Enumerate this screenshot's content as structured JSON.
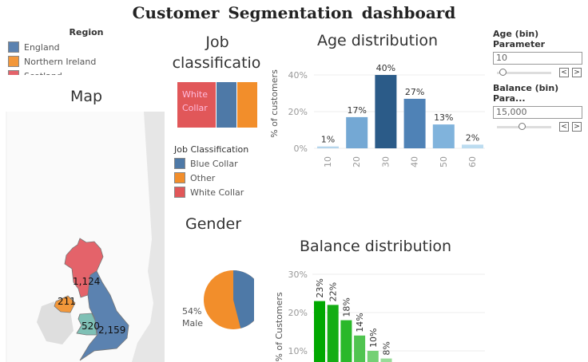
{
  "title": "Customer  Segmentation  dashboard",
  "region_legend": {
    "title": "Region",
    "items": [
      {
        "label": "England",
        "color": "#5b82b0"
      },
      {
        "label": "Northern Ireland",
        "color": "#f2973a"
      },
      {
        "label": "Scotland",
        "color": "#e4636a"
      }
    ]
  },
  "map": {
    "title": "Map",
    "labels": {
      "scotland": "1,124",
      "northern_ireland": "211",
      "wales": "520",
      "england": "2,159"
    },
    "wales_color": "#7fc0b5"
  },
  "job": {
    "title_line1": "Job",
    "title_line2": "classificatio",
    "treemap_label": "White Collar",
    "legend_title": "Job Classification",
    "items": [
      {
        "label": "Blue Collar",
        "color": "#4e79a7"
      },
      {
        "label": "Other",
        "color": "#f28e2b"
      },
      {
        "label": "White Collar",
        "color": "#e15759"
      }
    ]
  },
  "gender": {
    "title": "Gender",
    "pct": "54%",
    "label": "Male"
  },
  "age_param": {
    "title": "Age (bin) Parameter",
    "value": "10",
    "slider_fraction": 0.05
  },
  "balance_param": {
    "title": "Balance (bin) Para...",
    "value": "15,000",
    "slider_fraction": 0.45
  },
  "chart_data": [
    {
      "type": "bar",
      "title": "Age distribution",
      "ylabel": "% of customers",
      "categories": [
        "10",
        "20",
        "30",
        "40",
        "50",
        "60"
      ],
      "values": [
        1,
        17,
        40,
        27,
        13,
        2
      ],
      "data_labels": [
        "1%",
        "17%",
        "40%",
        "27%",
        "13%",
        "2%"
      ],
      "yticks": [
        "0%",
        "20%",
        "40%"
      ],
      "ylim": [
        0,
        45
      ],
      "colors": [
        "#b5d5ec",
        "#74a8d4",
        "#2b5b88",
        "#4f82b6",
        "#80b3dc",
        "#bcdcf0"
      ]
    },
    {
      "type": "bar",
      "title": "Balance distribution",
      "ylabel": "% of Customers",
      "values": [
        23,
        22,
        18,
        14,
        10,
        8
      ],
      "data_labels": [
        "23%",
        "22%",
        "18%",
        "14%",
        "10%",
        "8%"
      ],
      "yticks": [
        "10%",
        "20%",
        "30%"
      ],
      "colors": [
        "#00a800",
        "#14ad14",
        "#2ab82a",
        "#50c450",
        "#74d074",
        "#98dc98"
      ]
    }
  ]
}
